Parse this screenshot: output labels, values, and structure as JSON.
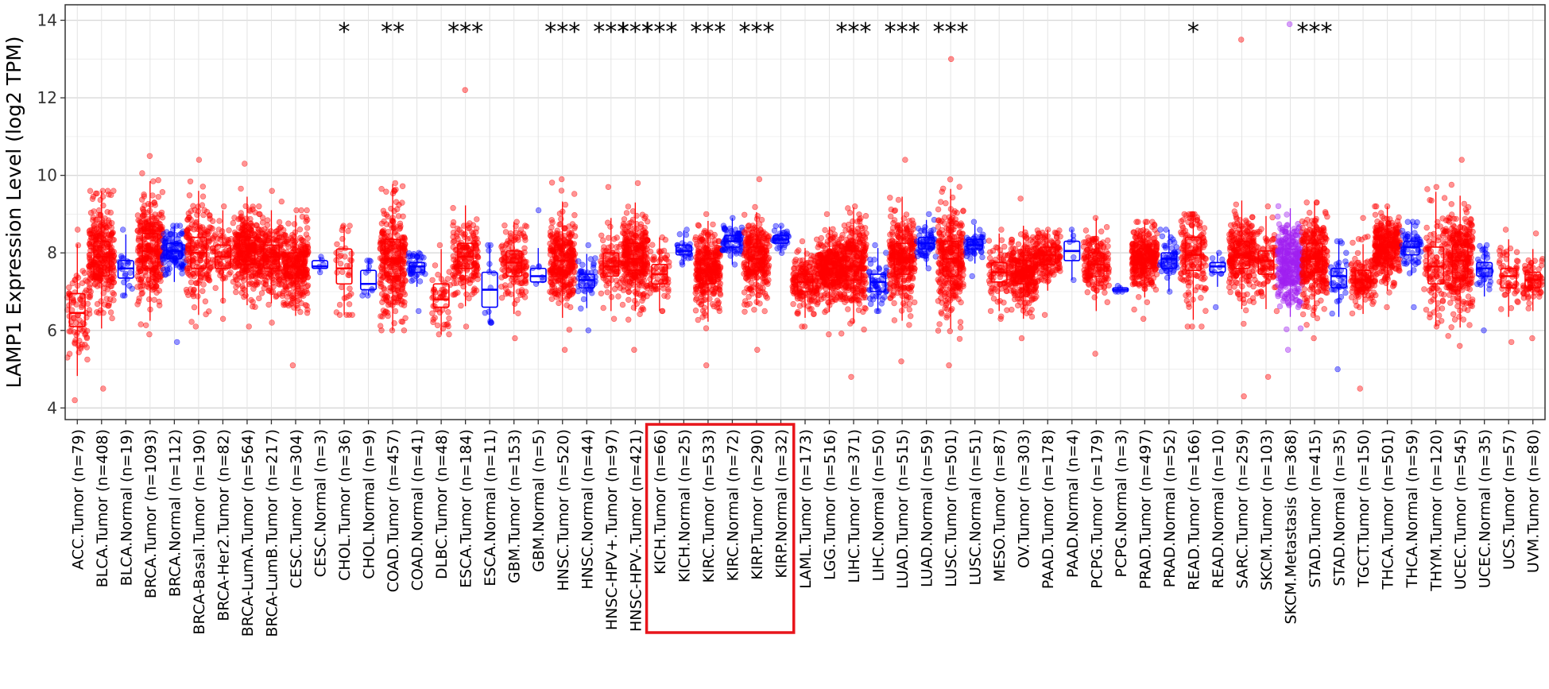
{
  "chart_data": {
    "type": "box",
    "title": "",
    "xlabel": "",
    "ylabel": "LAMP1 Expression Level (log2 TPM)",
    "ylim": [
      3.7,
      14.4
    ],
    "yticks": [
      4,
      6,
      8,
      10,
      12,
      14
    ],
    "grid": true,
    "colors": {
      "tumor": "#ff0000",
      "normal": "#0000ff",
      "metastasis": "#a020f0",
      "shade": "#d3d3d3",
      "highlight": "#e8151b"
    },
    "categories": [
      {
        "label": "ACC.Tumor (n=79)",
        "type": "tumor",
        "q1": 6.1,
        "median": 6.45,
        "q3": 6.95,
        "lo": 4.2,
        "hi": 8.6,
        "sig": ""
      },
      {
        "label": "BLCA.Tumor (n=408)",
        "type": "tumor",
        "q1": 7.4,
        "median": 7.9,
        "q3": 8.3,
        "lo": 4.5,
        "hi": 9.6,
        "sig": ""
      },
      {
        "label": "BLCA.Normal (n=19)",
        "type": "normal",
        "q1": 7.35,
        "median": 7.6,
        "q3": 7.8,
        "lo": 6.9,
        "hi": 8.6,
        "sig": ""
      },
      {
        "label": "BRCA.Tumor (n=1093)",
        "type": "tumor",
        "q1": 7.6,
        "median": 8.05,
        "q3": 8.5,
        "lo": 5.9,
        "hi": 10.5,
        "sig": ""
      },
      {
        "label": "BRCA.Normal (n=112)",
        "type": "normal",
        "q1": 7.85,
        "median": 8.05,
        "q3": 8.25,
        "lo": 5.7,
        "hi": 8.7,
        "sig": ""
      },
      {
        "label": "BRCA-Basal.Tumor (n=190)",
        "type": "tumor",
        "q1": 7.6,
        "median": 8.0,
        "q3": 8.4,
        "lo": 6.1,
        "hi": 10.4,
        "sig": ""
      },
      {
        "label": "BRCA-Her2.Tumor (n=82)",
        "type": "tumor",
        "q1": 7.6,
        "median": 7.9,
        "q3": 8.2,
        "lo": 6.3,
        "hi": 9.2,
        "sig": ""
      },
      {
        "label": "BRCA-LumA.Tumor (n=564)",
        "type": "tumor",
        "q1": 7.7,
        "median": 8.05,
        "q3": 8.4,
        "lo": 6.1,
        "hi": 10.3,
        "sig": ""
      },
      {
        "label": "BRCA-LumB.Tumor (n=217)",
        "type": "tumor",
        "q1": 7.6,
        "median": 7.9,
        "q3": 8.2,
        "lo": 6.2,
        "hi": 9.6,
        "sig": ""
      },
      {
        "label": "CESC.Tumor (n=304)",
        "type": "tumor",
        "q1": 7.35,
        "median": 7.65,
        "q3": 8.0,
        "lo": 5.1,
        "hi": 9.1,
        "sig": ""
      },
      {
        "label": "CESC.Normal (n=3)",
        "type": "normal",
        "q1": 7.6,
        "median": 7.65,
        "q3": 7.8,
        "lo": 7.5,
        "hi": 7.9,
        "sig": ""
      },
      {
        "label": "CHOL.Tumor (n=36)",
        "type": "tumor",
        "q1": 7.2,
        "median": 7.6,
        "q3": 8.1,
        "lo": 6.4,
        "hi": 8.7,
        "sig": "*"
      },
      {
        "label": "CHOL.Normal (n=9)",
        "type": "normal",
        "q1": 7.05,
        "median": 7.2,
        "q3": 7.55,
        "lo": 6.9,
        "hi": 7.8,
        "sig": ""
      },
      {
        "label": "COAD.Tumor (n=457)",
        "type": "tumor",
        "q1": 7.4,
        "median": 7.85,
        "q3": 8.35,
        "lo": 6.0,
        "hi": 9.8,
        "sig": "**"
      },
      {
        "label": "COAD.Normal (n=41)",
        "type": "normal",
        "q1": 7.5,
        "median": 7.65,
        "q3": 7.75,
        "lo": 6.5,
        "hi": 8.0,
        "sig": ""
      },
      {
        "label": "DLBC.Tumor (n=48)",
        "type": "tumor",
        "q1": 6.6,
        "median": 6.8,
        "q3": 7.2,
        "lo": 5.9,
        "hi": 8.2,
        "sig": ""
      },
      {
        "label": "ESCA.Tumor (n=184)",
        "type": "tumor",
        "q1": 7.6,
        "median": 7.9,
        "q3": 8.25,
        "lo": 6.1,
        "hi": 12.2,
        "sig": "***"
      },
      {
        "label": "ESCA.Normal (n=11)",
        "type": "normal",
        "q1": 6.6,
        "median": 7.05,
        "q3": 7.5,
        "lo": 6.2,
        "hi": 8.2,
        "sig": ""
      },
      {
        "label": "GBM.Tumor (n=153)",
        "type": "tumor",
        "q1": 7.4,
        "median": 7.75,
        "q3": 8.05,
        "lo": 5.8,
        "hi": 8.8,
        "sig": ""
      },
      {
        "label": "GBM.Normal (n=5)",
        "type": "normal",
        "q1": 7.25,
        "median": 7.4,
        "q3": 7.6,
        "lo": 7.2,
        "hi": 9.1,
        "sig": ""
      },
      {
        "label": "HNSC.Tumor (n=520)",
        "type": "tumor",
        "q1": 7.45,
        "median": 7.8,
        "q3": 8.2,
        "lo": 5.5,
        "hi": 9.9,
        "sig": "***"
      },
      {
        "label": "HNSC.Normal (n=44)",
        "type": "normal",
        "q1": 7.1,
        "median": 7.3,
        "q3": 7.45,
        "lo": 6.0,
        "hi": 8.2,
        "sig": ""
      },
      {
        "label": "HNSC-HPV+.Tumor (n=97)",
        "type": "tumor",
        "q1": 7.4,
        "median": 7.65,
        "q3": 8.0,
        "lo": 6.3,
        "hi": 9.7,
        "sig": "***"
      },
      {
        "label": "HNSC-HPV-.Tumor (n=421)",
        "type": "tumor",
        "q1": 7.55,
        "median": 7.85,
        "q3": 8.25,
        "lo": 5.5,
        "hi": 9.8,
        "sig": "***"
      },
      {
        "label": "KICH.Tumor (n=66)",
        "type": "tumor",
        "q1": 7.2,
        "median": 7.45,
        "q3": 7.7,
        "lo": 6.5,
        "hi": 8.4,
        "sig": "***"
      },
      {
        "label": "KICH.Normal (n=25)",
        "type": "normal",
        "q1": 7.95,
        "median": 8.05,
        "q3": 8.2,
        "lo": 7.7,
        "hi": 8.6,
        "sig": ""
      },
      {
        "label": "KIRC.Tumor (n=533)",
        "type": "tumor",
        "q1": 7.2,
        "median": 7.55,
        "q3": 7.85,
        "lo": 5.1,
        "hi": 9.0,
        "sig": "***"
      },
      {
        "label": "KIRC.Normal (n=72)",
        "type": "normal",
        "q1": 8.15,
        "median": 8.3,
        "q3": 8.45,
        "lo": 7.7,
        "hi": 8.9,
        "sig": ""
      },
      {
        "label": "KIRP.Tumor (n=290)",
        "type": "tumor",
        "q1": 7.55,
        "median": 7.85,
        "q3": 8.15,
        "lo": 5.5,
        "hi": 9.9,
        "sig": "***"
      },
      {
        "label": "KIRP.Normal (n=32)",
        "type": "normal",
        "q1": 8.25,
        "median": 8.35,
        "q3": 8.45,
        "lo": 8.0,
        "hi": 8.7,
        "sig": ""
      },
      {
        "label": "LAML.Tumor (n=173)",
        "type": "tumor",
        "q1": 7.0,
        "median": 7.25,
        "q3": 7.45,
        "lo": 6.1,
        "hi": 8.3,
        "sig": ""
      },
      {
        "label": "LGG.Tumor (n=516)",
        "type": "tumor",
        "q1": 7.3,
        "median": 7.6,
        "q3": 7.85,
        "lo": 5.9,
        "hi": 9.0,
        "sig": ""
      },
      {
        "label": "LIHC.Tumor (n=371)",
        "type": "tumor",
        "q1": 7.3,
        "median": 7.65,
        "q3": 8.05,
        "lo": 4.8,
        "hi": 9.2,
        "sig": "***"
      },
      {
        "label": "LIHC.Normal (n=50)",
        "type": "normal",
        "q1": 7.0,
        "median": 7.25,
        "q3": 7.45,
        "lo": 6.5,
        "hi": 8.2,
        "sig": ""
      },
      {
        "label": "LUAD.Tumor (n=515)",
        "type": "tumor",
        "q1": 7.45,
        "median": 7.85,
        "q3": 8.25,
        "lo": 5.2,
        "hi": 10.4,
        "sig": "***"
      },
      {
        "label": "LUAD.Normal (n=59)",
        "type": "normal",
        "q1": 8.1,
        "median": 8.25,
        "q3": 8.4,
        "lo": 7.6,
        "hi": 9.0,
        "sig": ""
      },
      {
        "label": "LUSC.Tumor (n=501)",
        "type": "tumor",
        "q1": 7.4,
        "median": 7.85,
        "q3": 8.3,
        "lo": 5.1,
        "hi": 13.0,
        "sig": "***"
      },
      {
        "label": "LUSC.Normal (n=51)",
        "type": "normal",
        "q1": 8.1,
        "median": 8.2,
        "q3": 8.35,
        "lo": 7.4,
        "hi": 8.8,
        "sig": ""
      },
      {
        "label": "MESO.Tumor (n=87)",
        "type": "tumor",
        "q1": 7.25,
        "median": 7.5,
        "q3": 7.75,
        "lo": 6.3,
        "hi": 8.6,
        "sig": ""
      },
      {
        "label": "OV.Tumor (n=303)",
        "type": "tumor",
        "q1": 7.2,
        "median": 7.5,
        "q3": 7.8,
        "lo": 5.8,
        "hi": 9.4,
        "sig": ""
      },
      {
        "label": "PAAD.Tumor (n=178)",
        "type": "tumor",
        "q1": 7.7,
        "median": 7.95,
        "q3": 8.15,
        "lo": 6.4,
        "hi": 8.6,
        "sig": ""
      },
      {
        "label": "PAAD.Normal (n=4)",
        "type": "normal",
        "q1": 7.8,
        "median": 8.05,
        "q3": 8.3,
        "lo": 7.3,
        "hi": 8.6,
        "sig": ""
      },
      {
        "label": "PCPG.Tumor (n=179)",
        "type": "tumor",
        "q1": 7.4,
        "median": 7.7,
        "q3": 8.0,
        "lo": 5.4,
        "hi": 8.9,
        "sig": ""
      },
      {
        "label": "PCPG.Normal (n=3)",
        "type": "normal",
        "q1": 7.0,
        "median": 7.05,
        "q3": 7.1,
        "lo": 7.0,
        "hi": 7.15,
        "sig": ""
      },
      {
        "label": "PRAD.Tumor (n=497)",
        "type": "tumor",
        "q1": 7.6,
        "median": 7.85,
        "q3": 8.1,
        "lo": 6.3,
        "hi": 8.8,
        "sig": ""
      },
      {
        "label": "PRAD.Normal (n=52)",
        "type": "normal",
        "q1": 7.6,
        "median": 7.85,
        "q3": 8.0,
        "lo": 7.0,
        "hi": 8.6,
        "sig": ""
      },
      {
        "label": "READ.Tumor (n=166)",
        "type": "tumor",
        "q1": 7.55,
        "median": 7.95,
        "q3": 8.4,
        "lo": 6.1,
        "hi": 9.0,
        "sig": "*"
      },
      {
        "label": "READ.Normal (n=10)",
        "type": "normal",
        "q1": 7.5,
        "median": 7.65,
        "q3": 7.75,
        "lo": 6.6,
        "hi": 8.0,
        "sig": ""
      },
      {
        "label": "SARC.Tumor (n=259)",
        "type": "tumor",
        "q1": 7.6,
        "median": 7.95,
        "q3": 8.3,
        "lo": 4.3,
        "hi": 13.5,
        "sig": ""
      },
      {
        "label": "SKCM.Tumor (n=103)",
        "type": "tumor",
        "q1": 7.45,
        "median": 7.8,
        "q3": 8.05,
        "lo": 4.8,
        "hi": 9.2,
        "sig": ""
      },
      {
        "label": "SKCM.Metastasis (n=368)",
        "type": "metastasis",
        "q1": 7.4,
        "median": 7.75,
        "q3": 8.1,
        "lo": 5.5,
        "hi": 13.9,
        "sig": ""
      },
      {
        "label": "STAD.Tumor (n=415)",
        "type": "tumor",
        "q1": 7.5,
        "median": 7.85,
        "q3": 8.25,
        "lo": 5.8,
        "hi": 9.3,
        "sig": "***"
      },
      {
        "label": "STAD.Normal (n=35)",
        "type": "normal",
        "q1": 7.1,
        "median": 7.4,
        "q3": 7.6,
        "lo": 5.0,
        "hi": 8.3,
        "sig": ""
      },
      {
        "label": "TGCT.Tumor (n=150)",
        "type": "tumor",
        "q1": 7.1,
        "median": 7.3,
        "q3": 7.55,
        "lo": 4.5,
        "hi": 8.9,
        "sig": ""
      },
      {
        "label": "THCA.Tumor (n=501)",
        "type": "tumor",
        "q1": 7.85,
        "median": 8.15,
        "q3": 8.4,
        "lo": 6.6,
        "hi": 9.2,
        "sig": ""
      },
      {
        "label": "THCA.Normal (n=59)",
        "type": "normal",
        "q1": 7.95,
        "median": 8.15,
        "q3": 8.3,
        "lo": 6.6,
        "hi": 8.8,
        "sig": ""
      },
      {
        "label": "THYM.Tumor (n=120)",
        "type": "tumor",
        "q1": 7.2,
        "median": 7.65,
        "q3": 8.15,
        "lo": 6.1,
        "hi": 9.7,
        "sig": ""
      },
      {
        "label": "UCEC.Tumor (n=545)",
        "type": "tumor",
        "q1": 7.35,
        "median": 7.8,
        "q3": 8.2,
        "lo": 5.6,
        "hi": 10.4,
        "sig": ""
      },
      {
        "label": "UCEC.Normal (n=35)",
        "type": "normal",
        "q1": 7.4,
        "median": 7.6,
        "q3": 7.75,
        "lo": 6.0,
        "hi": 8.2,
        "sig": ""
      },
      {
        "label": "UCS.Tumor (n=57)",
        "type": "tumor",
        "q1": 7.1,
        "median": 7.4,
        "q3": 7.6,
        "lo": 5.7,
        "hi": 8.6,
        "sig": ""
      },
      {
        "label": "UVM.Tumor (n=80)",
        "type": "tumor",
        "q1": 7.1,
        "median": 7.3,
        "q3": 7.5,
        "lo": 5.8,
        "hi": 8.5,
        "sig": ""
      }
    ],
    "shaded_groups": [
      1,
      3,
      9,
      13,
      16,
      18,
      20,
      22,
      24,
      26,
      28,
      33,
      35,
      37,
      41,
      47,
      49,
      52,
      55,
      58
    ],
    "highlight_categories": [
      "KICH.Tumor (n=66)",
      "KICH.Normal (n=25)",
      "KIRC.Tumor (n=533)",
      "KIRC.Normal (n=72)",
      "KIRP.Tumor (n=290)",
      "KIRP.Normal (n=32)"
    ]
  }
}
